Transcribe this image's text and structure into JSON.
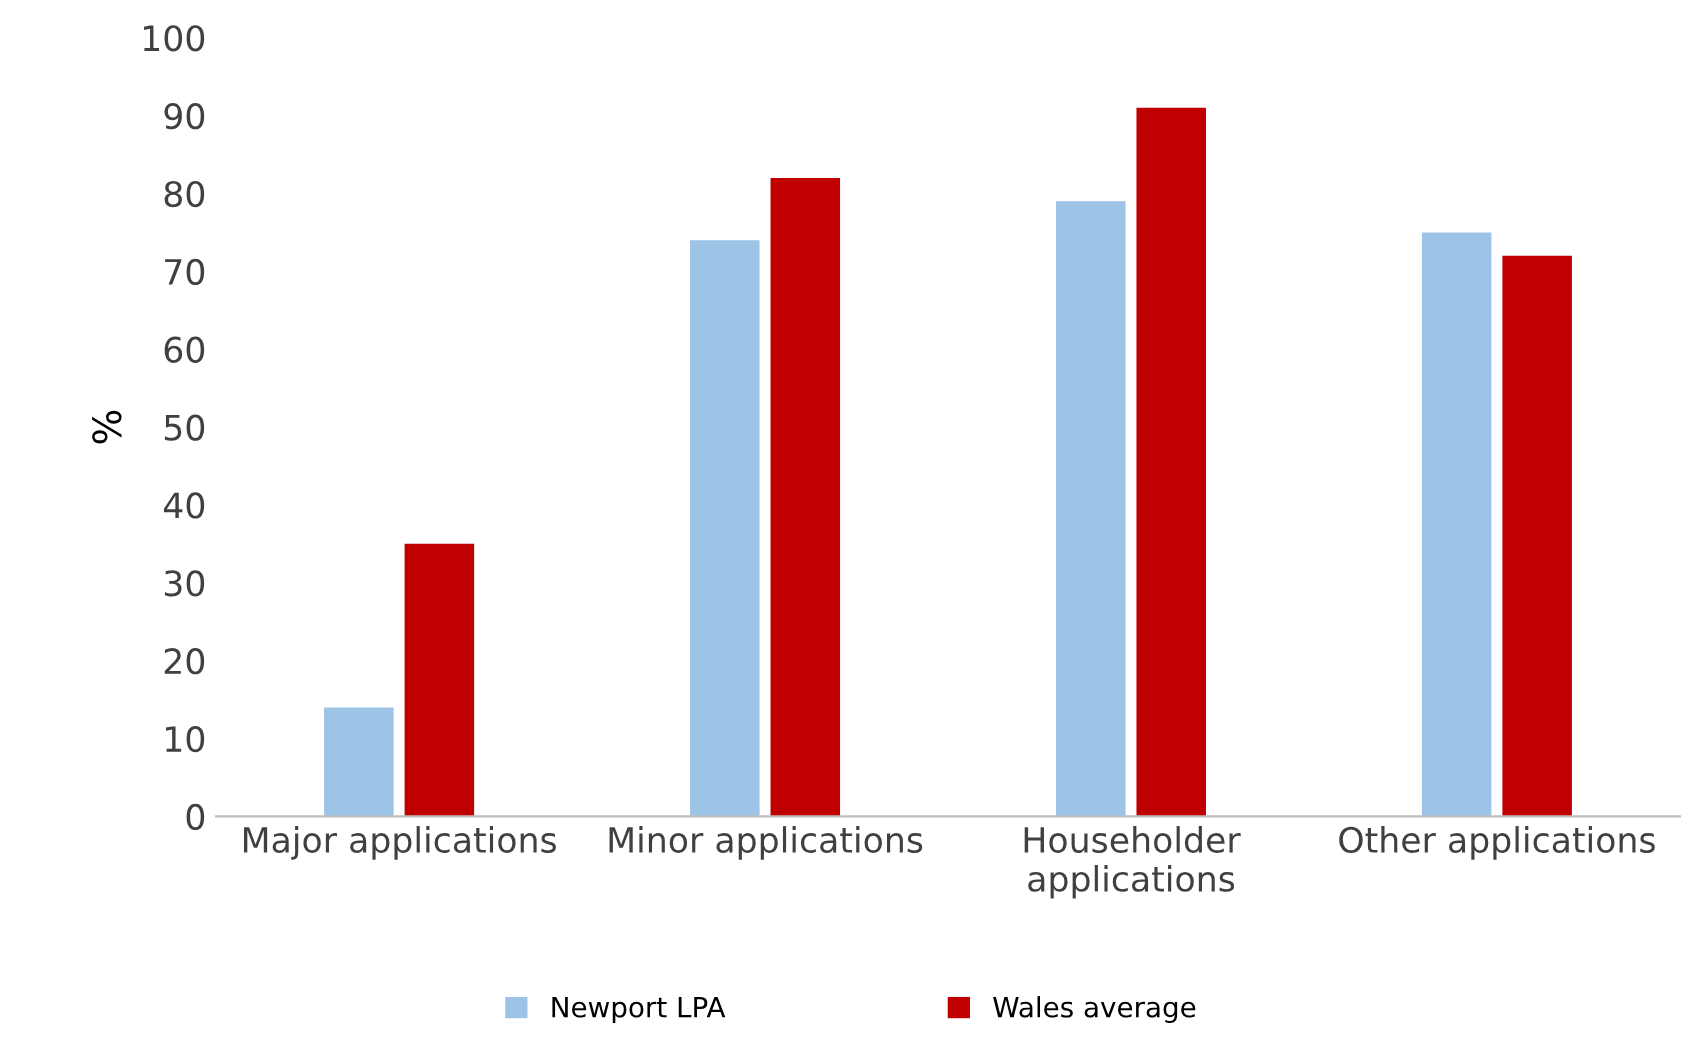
{
  "chart_data": {
    "type": "bar",
    "ylabel": "%",
    "categories": [
      "Major applications",
      "Minor applications",
      "Householder\napplications",
      "Other applications"
    ],
    "series": [
      {
        "name": "Newport LPA",
        "color": "#9dc3e6",
        "values": [
          14,
          74,
          79,
          75
        ]
      },
      {
        "name": "Wales average",
        "color": "#c00000",
        "values": [
          35,
          82,
          91,
          72
        ]
      }
    ],
    "ylim": [
      0,
      100
    ],
    "yticks": [
      0,
      10,
      20,
      30,
      40,
      50,
      60,
      70,
      80,
      90,
      100
    ],
    "grid": false,
    "legend": "bottom"
  }
}
